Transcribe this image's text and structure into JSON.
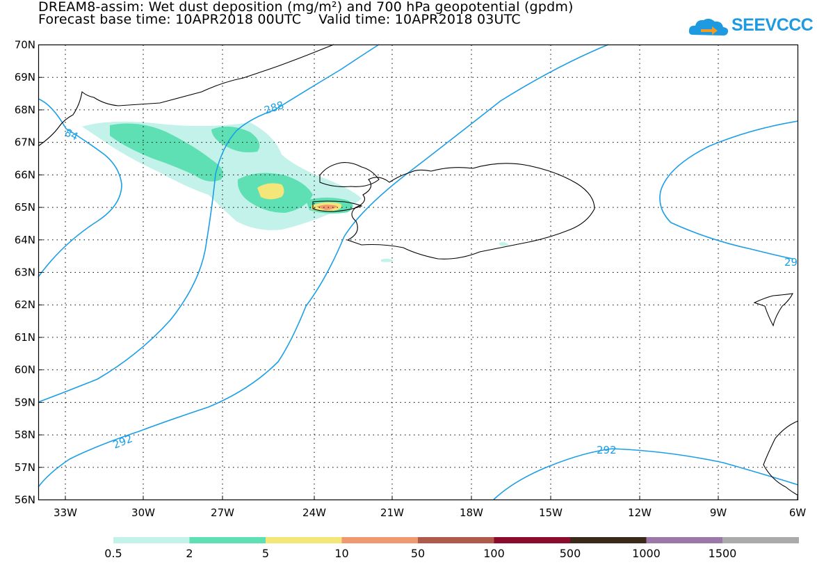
{
  "title": {
    "line1": "DREAM8-assim: Wet dust deposition (mg/m²) and 700 hPa geopotential (gpdm)",
    "line2": "Forecast base time: 10APR2018 00UTC    Valid time: 10APR2018 03UTC"
  },
  "logo": {
    "text": "SEEVCCC",
    "icon": "cloud-arrow-icon",
    "color": "#1e9be0"
  },
  "map": {
    "lat_labels": [
      "70N",
      "69N",
      "68N",
      "67N",
      "66N",
      "65N",
      "64N",
      "63N",
      "62N",
      "61N",
      "60N",
      "59N",
      "58N",
      "57N",
      "56N"
    ],
    "lon_labels": [
      "33W",
      "30W",
      "27W",
      "24W",
      "21W",
      "18W",
      "15W",
      "12W",
      "9W",
      "6W"
    ],
    "contour_labels": [
      "288",
      "84",
      "292",
      "292",
      "29"
    ],
    "contour_color": "#1a9ee6",
    "coast_color": "#000000"
  },
  "colorbar": {
    "colors": [
      "#c2f2ea",
      "#5fe0b4",
      "#f5e67a",
      "#ef9a6e",
      "#b05a4c",
      "#8a0b2c",
      "#3b2a1a",
      "#9c78a8",
      "#aaaaaa"
    ],
    "labels": [
      "0.5",
      "2",
      "5",
      "10",
      "50",
      "100",
      "500",
      "1000",
      "1500"
    ]
  }
}
